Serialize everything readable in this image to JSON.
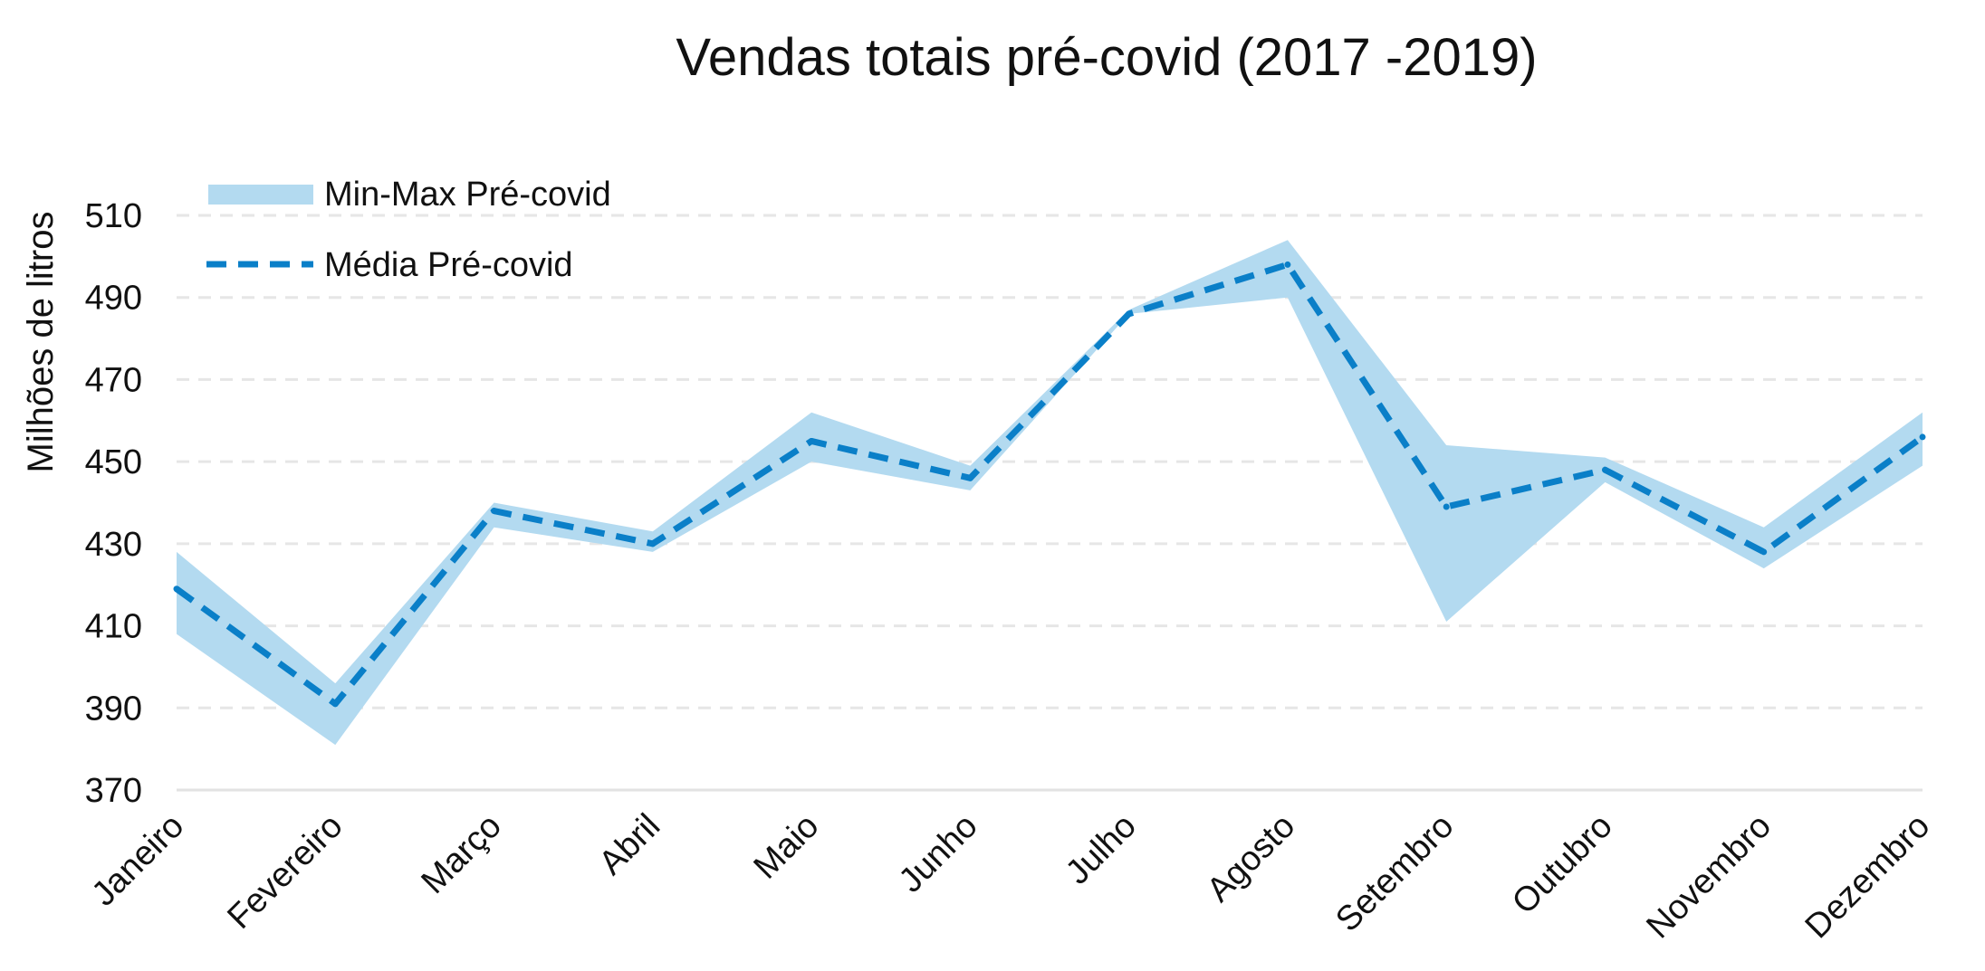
{
  "colors": {
    "band": "#b3daf0",
    "mean_line": "#0a7fc8",
    "grid": "#e6e6e6"
  },
  "chart_data": {
    "type": "line",
    "title": "Vendas totais pré-covid (2017 -2019)",
    "xlabel": "",
    "ylabel": "Milhões de litros",
    "ylim": [
      370,
      510
    ],
    "yticks": [
      510,
      490,
      470,
      450,
      430,
      410,
      390,
      370
    ],
    "categories": [
      "Janeiro",
      "Fevereiro",
      "Março",
      "Abril",
      "Maio",
      "Junho",
      "Julho",
      "Agosto",
      "Setembro",
      "Outubro",
      "Novembro",
      "Dezembro"
    ],
    "grid": true,
    "legend_position": "top-left",
    "series": [
      {
        "name": "Min-Max Pré-covid",
        "type": "band",
        "min": [
          408,
          381,
          434,
          428,
          450,
          443,
          486,
          490,
          411,
          445,
          424,
          449
        ],
        "max": [
          428,
          396,
          440,
          433,
          462,
          449,
          487,
          504,
          454,
          451,
          434,
          462
        ]
      },
      {
        "name": "Média Pré-covid",
        "type": "line",
        "style": "dashed",
        "values": [
          419,
          391,
          438,
          430,
          455,
          446,
          486,
          498,
          439,
          448,
          428,
          456
        ]
      }
    ]
  }
}
